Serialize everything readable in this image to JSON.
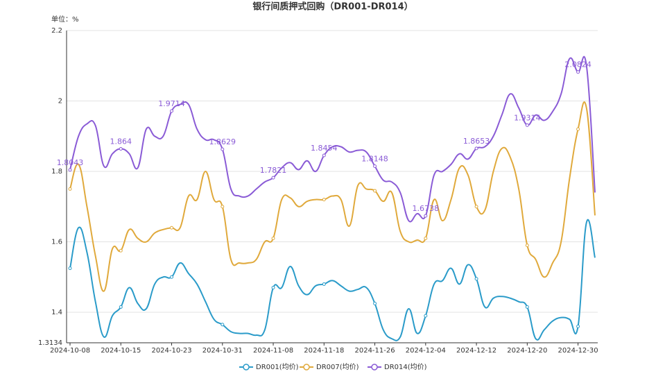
{
  "chart_data": {
    "type": "line",
    "title": "银行间质押式回购（DR001-DR014）",
    "unit_label": "单位：%",
    "categories": [
      "2024-10-08",
      null,
      null,
      null,
      null,
      null,
      "2024-10-15",
      null,
      null,
      null,
      null,
      null,
      "2024-10-23",
      null,
      null,
      null,
      null,
      null,
      "2024-10-31",
      null,
      null,
      null,
      null,
      null,
      "2024-11-08",
      null,
      null,
      null,
      null,
      null,
      "2024-11-18",
      null,
      null,
      null,
      null,
      null,
      "2024-11-26",
      null,
      null,
      null,
      null,
      null,
      "2024-12-04",
      null,
      null,
      null,
      null,
      null,
      "2024-12-12",
      null,
      null,
      null,
      null,
      null,
      "2024-12-20",
      null,
      null,
      null,
      null,
      null,
      "2024-12-30",
      null,
      null
    ],
    "series": [
      {
        "name": "DR001(均价)",
        "color": "#2a9bc9",
        "values": [
          1.525,
          1.64,
          1.57,
          1.43,
          1.33,
          1.39,
          1.415,
          1.47,
          1.425,
          1.41,
          1.48,
          1.5,
          1.5,
          1.54,
          1.51,
          1.48,
          1.43,
          1.38,
          1.365,
          1.345,
          1.34,
          1.34,
          1.335,
          1.35,
          1.47,
          1.47,
          1.53,
          1.475,
          1.45,
          1.475,
          1.48,
          1.49,
          1.475,
          1.46,
          1.465,
          1.47,
          1.425,
          1.35,
          1.325,
          1.33,
          1.41,
          1.34,
          1.39,
          1.48,
          1.49,
          1.525,
          1.48,
          1.535,
          1.495,
          1.415,
          1.44,
          1.445,
          1.44,
          1.43,
          1.415,
          1.325,
          1.35,
          1.375,
          1.385,
          1.38,
          1.36,
          1.655,
          1.555
        ]
      },
      {
        "name": "DR007(均价)",
        "color": "#e0a93b",
        "values": [
          1.75,
          1.82,
          1.7,
          1.56,
          1.46,
          1.58,
          1.575,
          1.635,
          1.61,
          1.6,
          1.625,
          1.635,
          1.64,
          1.64,
          1.73,
          1.72,
          1.8,
          1.72,
          1.7,
          1.55,
          1.54,
          1.54,
          1.55,
          1.6,
          1.61,
          1.72,
          1.725,
          1.7,
          1.715,
          1.72,
          1.72,
          1.73,
          1.72,
          1.645,
          1.76,
          1.75,
          1.745,
          1.715,
          1.74,
          1.63,
          1.6,
          1.605,
          1.61,
          1.72,
          1.66,
          1.72,
          1.81,
          1.79,
          1.7,
          1.69,
          1.8,
          1.865,
          1.84,
          1.75,
          1.59,
          1.55,
          1.5,
          1.54,
          1.6,
          1.78,
          1.92,
          1.98,
          1.675
        ]
      },
      {
        "name": "DR014(均价)",
        "color": "#8a5bd6",
        "show_labels": true,
        "values": [
          1.8043,
          1.9,
          1.935,
          1.93,
          1.815,
          1.85,
          1.864,
          1.85,
          1.81,
          1.92,
          1.9,
          1.9,
          1.9714,
          1.99,
          1.99,
          1.92,
          1.89,
          1.89,
          1.8629,
          1.75,
          1.73,
          1.73,
          1.75,
          1.77,
          1.7821,
          1.81,
          1.825,
          1.805,
          1.83,
          1.8,
          1.8454,
          1.87,
          1.87,
          1.855,
          1.86,
          1.855,
          1.8148,
          1.775,
          1.77,
          1.74,
          1.66,
          1.68,
          1.6738,
          1.79,
          1.8,
          1.82,
          1.85,
          1.835,
          1.8653,
          1.87,
          1.9,
          1.96,
          2.02,
          1.98,
          1.9314,
          1.96,
          1.945,
          1.97,
          2.02,
          2.12,
          2.0824,
          2.1,
          1.74
        ]
      }
    ],
    "ylim": [
      1.3134,
      2.2
    ],
    "yticks": [
      1.3134,
      1.4,
      1.6,
      1.8,
      2,
      2.2
    ],
    "grid": true
  }
}
